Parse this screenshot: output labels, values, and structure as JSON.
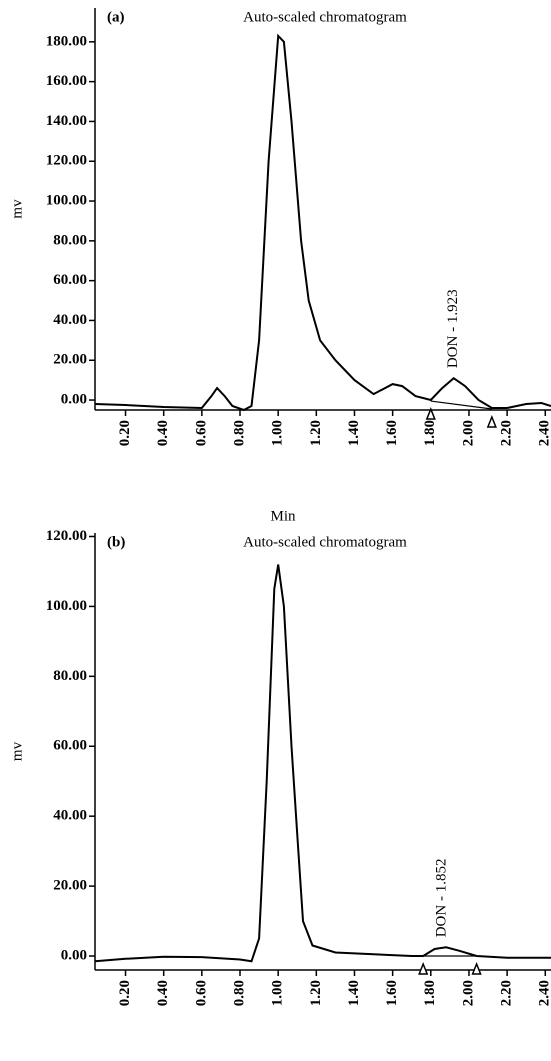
{
  "chart_data": [
    {
      "type": "line",
      "panel_label": "(a)",
      "title": "Auto-scaled chromatogram",
      "x_label": "Min",
      "y_label": "mv",
      "xlim": [
        0.04,
        2.43
      ],
      "ylim": [
        -5,
        197
      ],
      "xticks": [
        {
          "value": 0.2,
          "label": "0.20"
        },
        {
          "value": 0.4,
          "label": "0.40"
        },
        {
          "value": 0.6,
          "label": "0.60"
        },
        {
          "value": 0.8,
          "label": "0.80"
        },
        {
          "value": 1.0,
          "label": "1.00"
        },
        {
          "value": 1.2,
          "label": "1.20"
        },
        {
          "value": 1.4,
          "label": "1.40"
        },
        {
          "value": 1.6,
          "label": "1.60"
        },
        {
          "value": 1.8,
          "label": "1.80"
        },
        {
          "value": 2.0,
          "label": "2.00"
        },
        {
          "value": 2.2,
          "label": "2.20"
        },
        {
          "value": 2.4,
          "label": "2.40"
        }
      ],
      "yticks": [
        {
          "value": 0,
          "label": "0.00"
        },
        {
          "value": 20,
          "label": "20.00"
        },
        {
          "value": 40,
          "label": "40.00"
        },
        {
          "value": 60,
          "label": "60.00"
        },
        {
          "value": 80,
          "label": "80.00"
        },
        {
          "value": 100,
          "label": "100.00"
        },
        {
          "value": 120,
          "label": "120.00"
        },
        {
          "value": 140,
          "label": "140.00"
        },
        {
          "value": 160,
          "label": "160.00"
        },
        {
          "value": 180,
          "label": "180.00"
        }
      ],
      "x": [
        0.04,
        0.2,
        0.4,
        0.6,
        0.65,
        0.68,
        0.72,
        0.76,
        0.82,
        0.86,
        0.9,
        0.95,
        1.0,
        1.03,
        1.07,
        1.12,
        1.16,
        1.22,
        1.3,
        1.4,
        1.5,
        1.6,
        1.65,
        1.72,
        1.8,
        1.86,
        1.92,
        1.98,
        2.05,
        2.12,
        2.2,
        2.3,
        2.38,
        2.43
      ],
      "series": [
        {
          "color": "#000000",
          "values": [
            -2,
            -2.5,
            -3.5,
            -4,
            2,
            6,
            2,
            -3,
            -5,
            -3,
            30,
            120,
            183,
            180,
            140,
            80,
            50,
            30,
            20,
            10,
            3,
            8,
            7,
            2,
            0,
            6,
            11,
            7,
            0,
            -4,
            -4,
            -2,
            -1.5,
            -3
          ]
        }
      ],
      "integration": {
        "x": [
          1.8,
          2.12
        ],
        "y": [
          -0.5,
          -4.5
        ]
      },
      "annotation": "DON - 1.923"
    },
    {
      "type": "line",
      "panel_label": "(b)",
      "title": "Auto-scaled chromatogram",
      "x_label": "Min",
      "y_label": "mv",
      "xlim": [
        0.04,
        2.43
      ],
      "ylim": [
        -4,
        121
      ],
      "xticks": [
        {
          "value": 0.2,
          "label": "0.20"
        },
        {
          "value": 0.4,
          "label": "0.40"
        },
        {
          "value": 0.6,
          "label": "0.60"
        },
        {
          "value": 0.8,
          "label": "0.80"
        },
        {
          "value": 1.0,
          "label": "1.00"
        },
        {
          "value": 1.2,
          "label": "1.20"
        },
        {
          "value": 1.4,
          "label": "1.40"
        },
        {
          "value": 1.6,
          "label": "1.60"
        },
        {
          "value": 1.8,
          "label": "1.80"
        },
        {
          "value": 2.0,
          "label": "2.00"
        },
        {
          "value": 2.2,
          "label": "2.20"
        },
        {
          "value": 2.4,
          "label": "2.40"
        }
      ],
      "yticks": [
        {
          "value": 0,
          "label": "0.00"
        },
        {
          "value": 20,
          "label": "20.00"
        },
        {
          "value": 40,
          "label": "40.00"
        },
        {
          "value": 60,
          "label": "60.00"
        },
        {
          "value": 80,
          "label": "80.00"
        },
        {
          "value": 100,
          "label": "100.00"
        },
        {
          "value": 120,
          "label": "120.00"
        }
      ],
      "x": [
        0.04,
        0.2,
        0.4,
        0.6,
        0.8,
        0.86,
        0.9,
        0.94,
        0.98,
        1.0,
        1.03,
        1.07,
        1.1,
        1.13,
        1.18,
        1.3,
        1.5,
        1.7,
        1.76,
        1.82,
        1.88,
        1.95,
        2.04,
        2.2,
        2.43
      ],
      "series": [
        {
          "color": "#000000",
          "values": [
            -1.5,
            -0.8,
            -0.2,
            -0.3,
            -1,
            -1.5,
            5,
            50,
            105,
            112,
            100,
            60,
            35,
            10,
            3,
            1,
            0.5,
            0,
            0,
            2,
            2.5,
            1.5,
            0,
            -0.5,
            -0.5
          ]
        }
      ],
      "integration": {
        "x": [
          1.76,
          2.04
        ],
        "y": [
          0,
          0
        ]
      },
      "annotation": "DON - 1.852"
    }
  ]
}
